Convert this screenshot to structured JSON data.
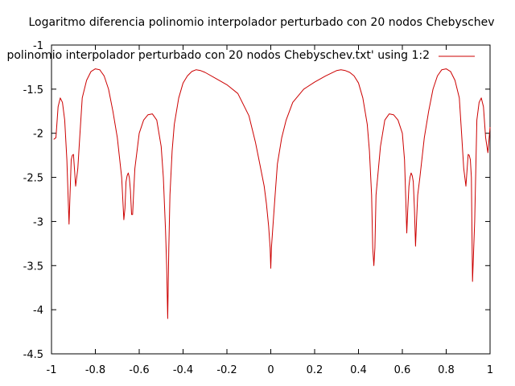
{
  "chart_data": {
    "type": "line",
    "title": "Logaritmo diferencia polinomio interpolador perturbado con 20 nodos Chebyschev",
    "xlabel": "",
    "ylabel": "",
    "xlim": [
      -1,
      1
    ],
    "ylim": [
      -4.5,
      -1
    ],
    "x_ticks": [
      "-1",
      "-0.8",
      "-0.6",
      "-0.4",
      "-0.2",
      "0",
      "0.2",
      "0.4",
      "0.6",
      "0.8",
      "1"
    ],
    "y_ticks": [
      "-1",
      "-1.5",
      "-2",
      "-2.5",
      "-3",
      "-3.5",
      "-4",
      "-4.5"
    ],
    "grid": false,
    "legend_position": "top-right",
    "series": [
      {
        "name": "polinomio interpolador perturbado con 20 nodos Chebyschev.txt' using 1:2",
        "color": "#cc0000",
        "x": [
          -0.99,
          -0.98,
          -0.97,
          -0.96,
          -0.95,
          -0.94,
          -0.93,
          -0.92,
          -0.91,
          -0.905,
          -0.9,
          -0.89,
          -0.88,
          -0.87,
          -0.86,
          -0.84,
          -0.82,
          -0.8,
          -0.78,
          -0.76,
          -0.74,
          -0.72,
          -0.7,
          -0.68,
          -0.67,
          -0.665,
          -0.66,
          -0.655,
          -0.65,
          -0.645,
          -0.64,
          -0.635,
          -0.63,
          -0.625,
          -0.62,
          -0.6,
          -0.58,
          -0.56,
          -0.54,
          -0.52,
          -0.5,
          -0.49,
          -0.48,
          -0.475,
          -0.47,
          -0.465,
          -0.46,
          -0.45,
          -0.44,
          -0.42,
          -0.4,
          -0.38,
          -0.36,
          -0.34,
          -0.32,
          -0.3,
          -0.25,
          -0.2,
          -0.15,
          -0.1,
          -0.07,
          -0.05,
          -0.03,
          -0.02,
          -0.01,
          -0.003,
          0,
          0.003,
          0.01,
          0.02,
          0.03,
          0.05,
          0.07,
          0.1,
          0.15,
          0.2,
          0.25,
          0.3,
          0.32,
          0.34,
          0.36,
          0.38,
          0.4,
          0.42,
          0.44,
          0.45,
          0.46,
          0.465,
          0.47,
          0.475,
          0.48,
          0.5,
          0.52,
          0.54,
          0.56,
          0.58,
          0.6,
          0.61,
          0.615,
          0.62,
          0.625,
          0.63,
          0.635,
          0.64,
          0.645,
          0.65,
          0.655,
          0.66,
          0.665,
          0.67,
          0.68,
          0.7,
          0.72,
          0.74,
          0.76,
          0.78,
          0.8,
          0.82,
          0.84,
          0.86,
          0.87,
          0.88,
          0.89,
          0.9,
          0.905,
          0.91,
          0.915,
          0.92,
          0.93,
          0.94,
          0.95,
          0.96,
          0.97,
          0.98,
          0.99,
          1.0
        ],
        "y": [
          -2.07,
          -2.05,
          -1.7,
          -1.6,
          -1.65,
          -1.85,
          -2.3,
          -3.03,
          -2.3,
          -2.25,
          -2.24,
          -2.6,
          -2.4,
          -2.0,
          -1.6,
          -1.4,
          -1.3,
          -1.27,
          -1.28,
          -1.35,
          -1.5,
          -1.75,
          -2.05,
          -2.5,
          -2.98,
          -2.85,
          -2.55,
          -2.48,
          -2.45,
          -2.5,
          -2.65,
          -2.92,
          -2.92,
          -2.65,
          -2.4,
          -2.0,
          -1.85,
          -1.79,
          -1.78,
          -1.85,
          -2.15,
          -2.5,
          -3.1,
          -3.5,
          -4.1,
          -3.3,
          -2.7,
          -2.2,
          -1.9,
          -1.6,
          -1.43,
          -1.35,
          -1.3,
          -1.28,
          -1.29,
          -1.31,
          -1.38,
          -1.45,
          -1.55,
          -1.8,
          -2.1,
          -2.35,
          -2.6,
          -2.8,
          -3.05,
          -3.3,
          -3.53,
          -3.3,
          -3.05,
          -2.7,
          -2.35,
          -2.05,
          -1.85,
          -1.65,
          -1.5,
          -1.42,
          -1.35,
          -1.29,
          -1.28,
          -1.29,
          -1.31,
          -1.35,
          -1.43,
          -1.6,
          -1.9,
          -2.2,
          -2.7,
          -3.3,
          -3.5,
          -3.3,
          -2.7,
          -2.15,
          -1.85,
          -1.78,
          -1.79,
          -1.85,
          -2.0,
          -2.3,
          -2.7,
          -3.13,
          -2.85,
          -2.6,
          -2.5,
          -2.45,
          -2.48,
          -2.55,
          -2.85,
          -3.28,
          -2.98,
          -2.7,
          -2.5,
          -2.05,
          -1.75,
          -1.5,
          -1.35,
          -1.28,
          -1.27,
          -1.3,
          -1.4,
          -1.6,
          -2.0,
          -2.4,
          -2.6,
          -2.24,
          -2.25,
          -2.3,
          -2.5,
          -3.68,
          -3.0,
          -1.85,
          -1.65,
          -1.6,
          -1.7,
          -2.05,
          -2.22,
          -1.93
        ]
      }
    ]
  }
}
